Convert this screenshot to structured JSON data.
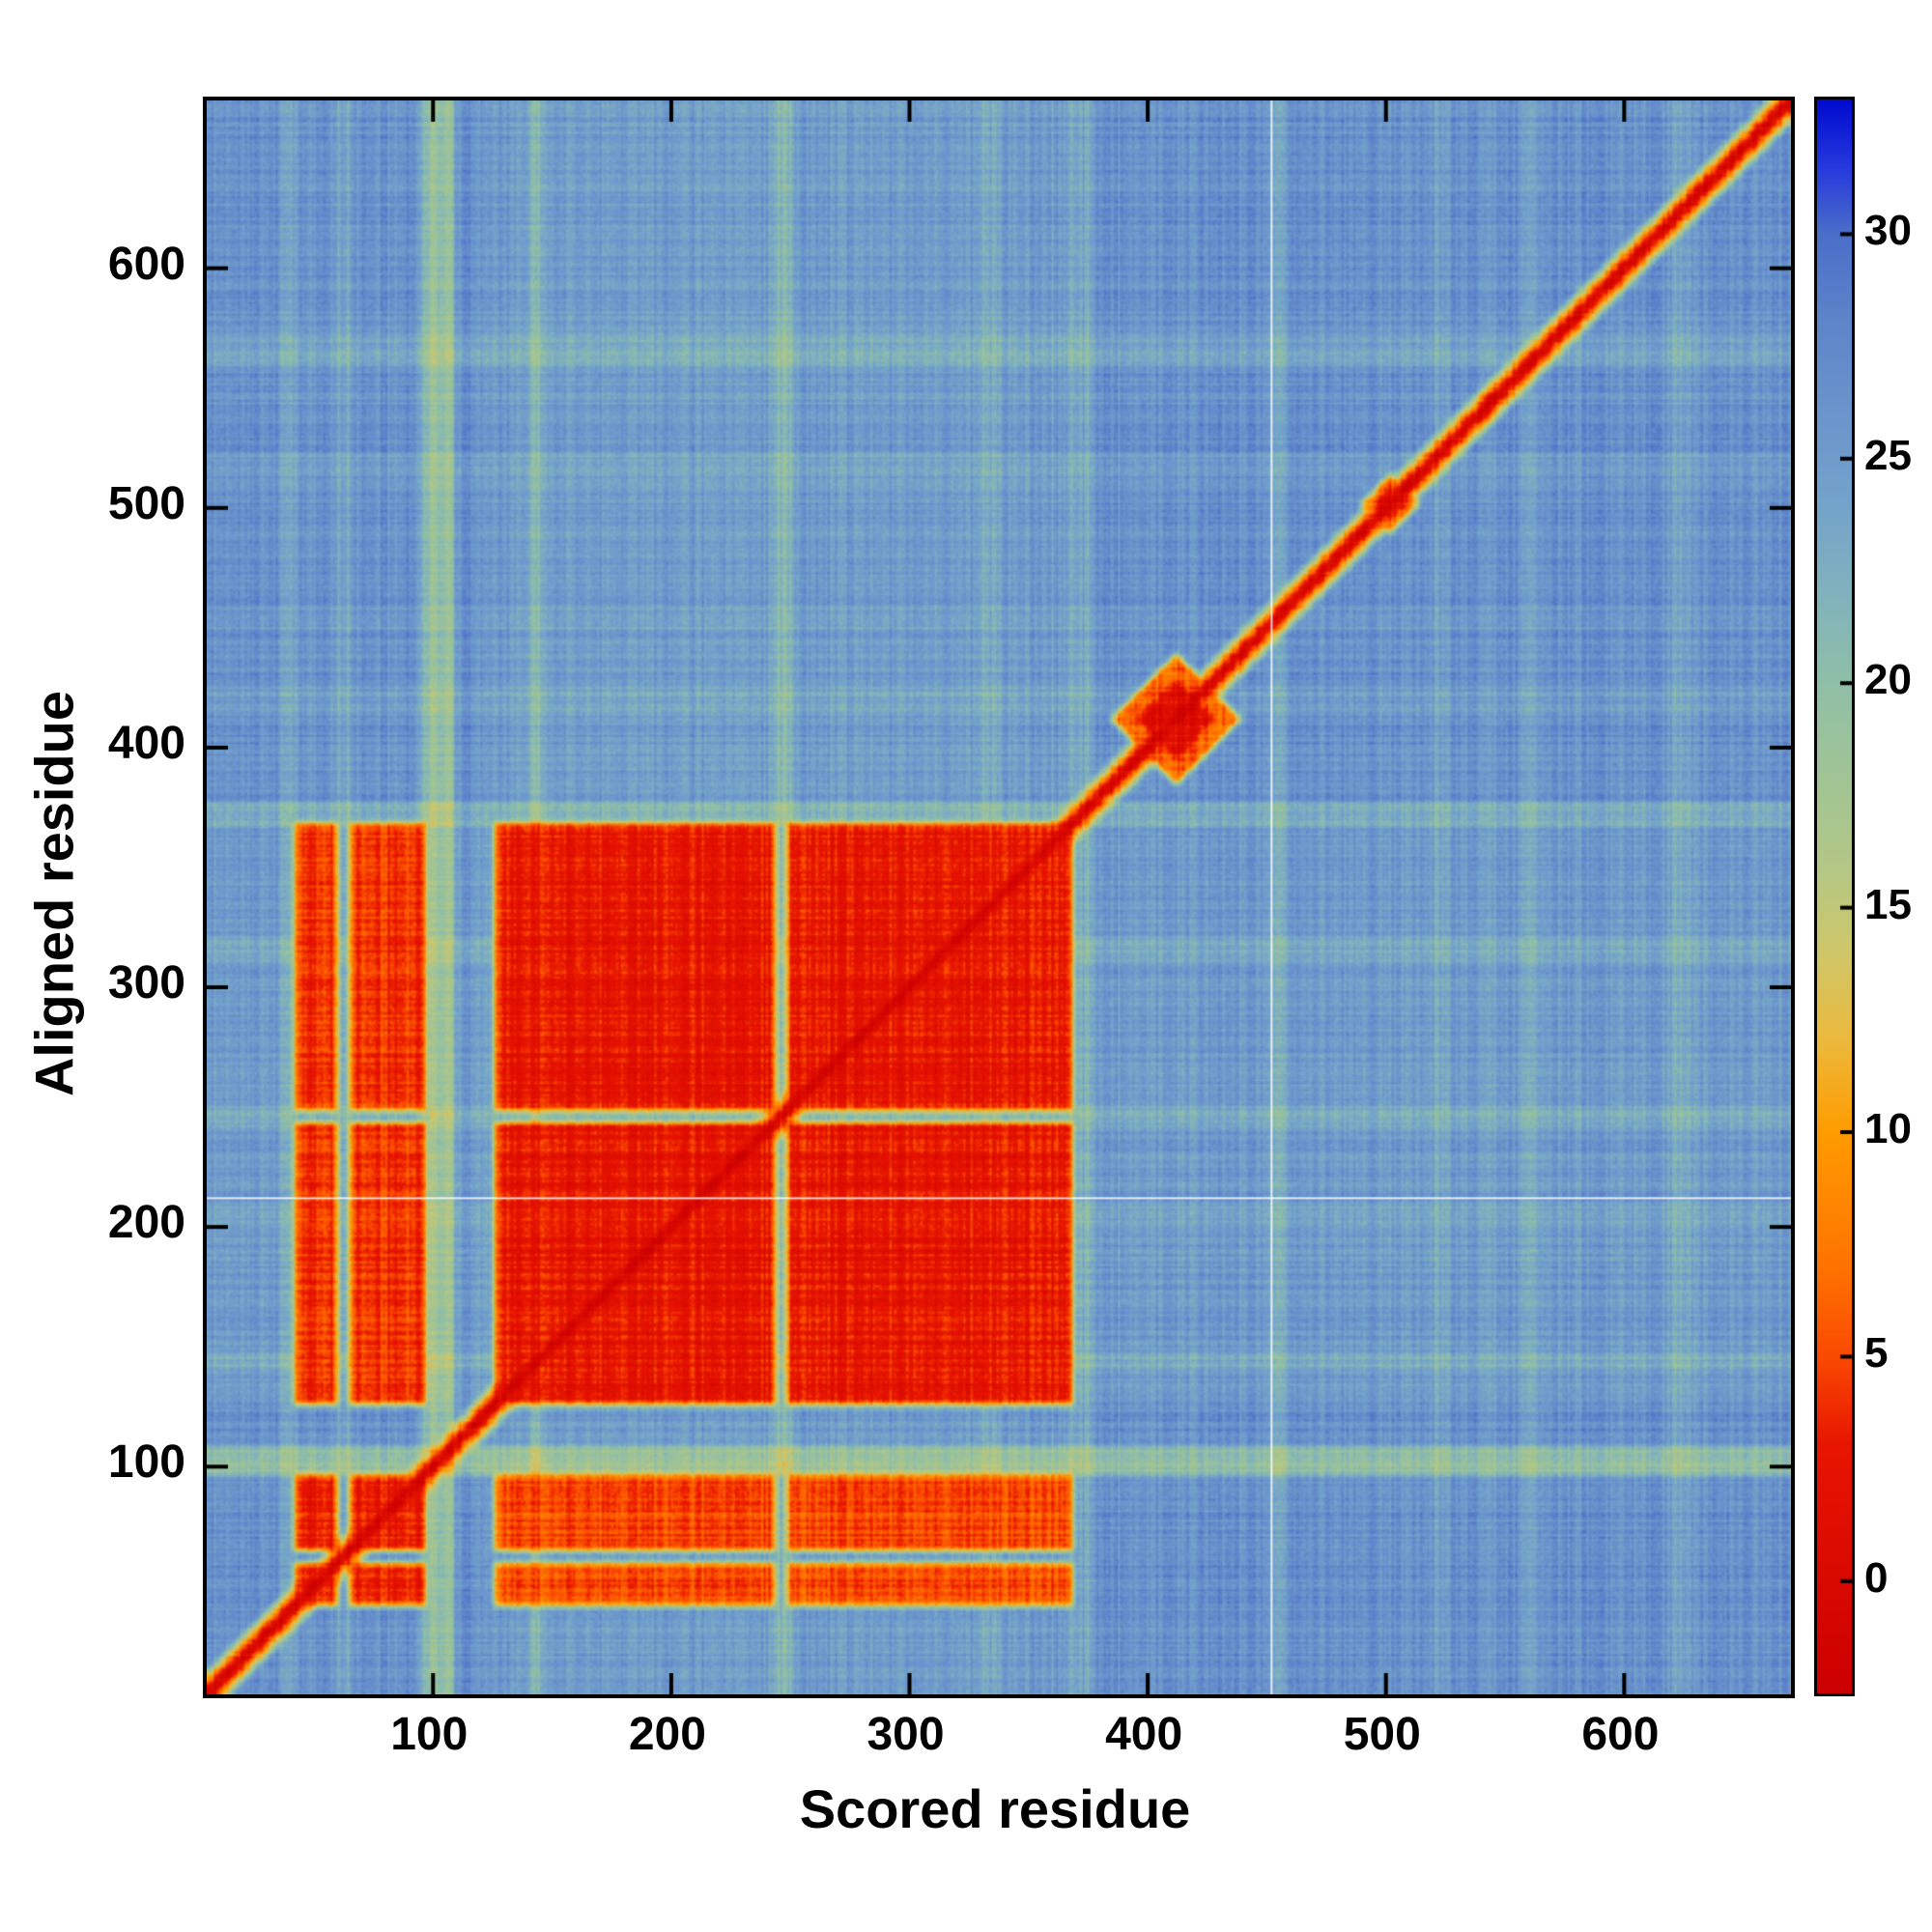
{
  "chart_data": {
    "type": "heatmap",
    "title": "",
    "xlabel": "Scored residue",
    "ylabel": "Aligned residue",
    "x_range": [
      5,
      670
    ],
    "y_range": [
      5,
      670
    ],
    "x_ticks": [
      100,
      200,
      300,
      400,
      500,
      600
    ],
    "y_ticks": [
      100,
      200,
      300,
      400,
      500,
      600
    ],
    "grid": false,
    "colorbar": {
      "vmin": -2.5,
      "vmax": 33,
      "ticks": [
        0,
        5,
        10,
        15,
        20,
        25,
        30
      ],
      "position": "right"
    },
    "colormap": [
      [
        -2.5,
        "#cc0000"
      ],
      [
        3,
        "#e81500"
      ],
      [
        5,
        "#fa4a00"
      ],
      [
        7,
        "#ff7300"
      ],
      [
        10,
        "#ff9c00"
      ],
      [
        12,
        "#edb93c"
      ],
      [
        14,
        "#cfc76a"
      ],
      [
        16,
        "#b3c787"
      ],
      [
        18,
        "#a0c496"
      ],
      [
        20,
        "#90bfa8"
      ],
      [
        22,
        "#81b2bd"
      ],
      [
        24,
        "#74a3cb"
      ],
      [
        26,
        "#6b95cc"
      ],
      [
        28,
        "#5f85c9"
      ],
      [
        30,
        "#4b6fc9"
      ],
      [
        31.5,
        "#2739dd"
      ],
      [
        33,
        "#000bcf"
      ]
    ],
    "background_value": 26.3,
    "blocks": [
      [
        42,
        59,
        42,
        59,
        3.2
      ],
      [
        42,
        59,
        65,
        96,
        3.2
      ],
      [
        65,
        96,
        42,
        59,
        3.2
      ],
      [
        65,
        96,
        65,
        96,
        3.2
      ],
      [
        42,
        59,
        126,
        243,
        4.2
      ],
      [
        42,
        59,
        249,
        368,
        4.2
      ],
      [
        65,
        96,
        126,
        243,
        4.2
      ],
      [
        65,
        96,
        249,
        368,
        4.2
      ],
      [
        126,
        243,
        42,
        59,
        5.2
      ],
      [
        249,
        368,
        42,
        59,
        5.2
      ],
      [
        126,
        243,
        65,
        96,
        5.2
      ],
      [
        249,
        368,
        65,
        96,
        5.2
      ],
      [
        126,
        243,
        126,
        243,
        2.8
      ],
      [
        126,
        243,
        249,
        368,
        2.8
      ],
      [
        249,
        368,
        126,
        243,
        2.8
      ],
      [
        249,
        368,
        249,
        368,
        2.8
      ]
    ],
    "v_streaks": [
      [
        96,
        108,
        -7
      ],
      [
        59,
        65,
        -3
      ],
      [
        140,
        147,
        -3.5
      ],
      [
        243,
        250,
        -4
      ],
      [
        126,
        368,
        -1.2
      ],
      [
        330,
        338,
        -2
      ],
      [
        368,
        377,
        -3
      ],
      [
        450,
        457,
        -2.5
      ],
      [
        520,
        526,
        -1.5
      ],
      [
        558,
        566,
        -2
      ],
      [
        620,
        627,
        -2.5
      ],
      [
        36,
        42,
        -2
      ]
    ],
    "h_streaks": [
      [
        96,
        108,
        -6.5
      ],
      [
        126,
        368,
        -1.2
      ],
      [
        140,
        147,
        -2.5
      ],
      [
        200,
        208,
        -2
      ],
      [
        243,
        250,
        -3
      ],
      [
        310,
        320,
        -2
      ],
      [
        368,
        377,
        -3.5
      ],
      [
        415,
        425,
        -1.5
      ],
      [
        450,
        457,
        -1.5
      ],
      [
        515,
        522,
        -2
      ],
      [
        560,
        572,
        -2.5
      ]
    ],
    "diagonal": {
      "core_value": -1.5,
      "core_half": 2,
      "mid_value": 5,
      "mid_half": 5,
      "outer_value": 14,
      "outer_half": 9
    },
    "blobs": [
      {
        "cx": 412,
        "cy": 412,
        "core_r": 16,
        "core_value": 1.2,
        "halo_r": 27,
        "halo_value": 6.5
      },
      {
        "cx": 502,
        "cy": 502,
        "core_r": 7,
        "core_value": 1.5,
        "halo_r": 12,
        "halo_value": 8
      }
    ],
    "white_lines": {
      "x": [
        452
      ],
      "y": [
        212
      ]
    },
    "noise": {
      "seed": 11,
      "col": 1.7,
      "row": 1.3,
      "pixel": 1.0
    }
  }
}
